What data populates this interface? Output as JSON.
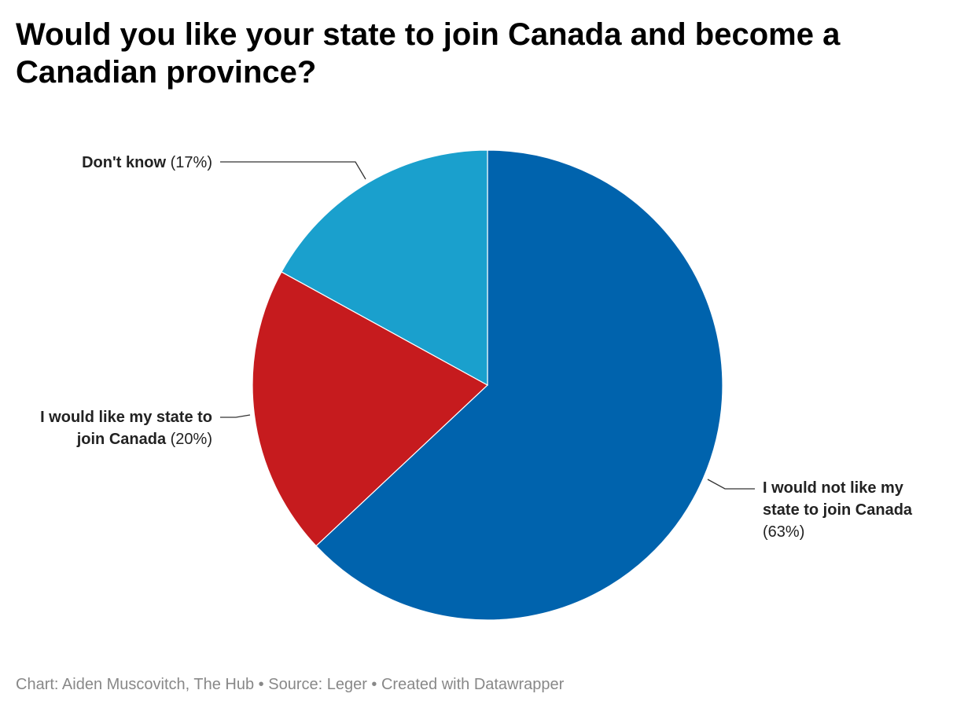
{
  "title": "Would you like your state to join Canada and become a Canadian province?",
  "footer": "Chart: Aiden Muscovitch, The Hub • Source: Leger • Created with Datawrapper",
  "chart_data": {
    "type": "pie",
    "title": "Would you like your state to join Canada and become a Canadian province?",
    "slices": [
      {
        "label": "I would not like my state to join Canada",
        "value": 63,
        "value_label": "(63%)",
        "color": "#0063ad"
      },
      {
        "label": "I would like my state to join Canada",
        "value": 20,
        "value_label": "(20%)",
        "color": "#c61b1e"
      },
      {
        "label": "Don't know",
        "value": 17,
        "value_label": "(17%)",
        "color": "#1aa0cd"
      }
    ],
    "start": "12 o'clock",
    "direction": "clockwise",
    "legend": "none"
  }
}
